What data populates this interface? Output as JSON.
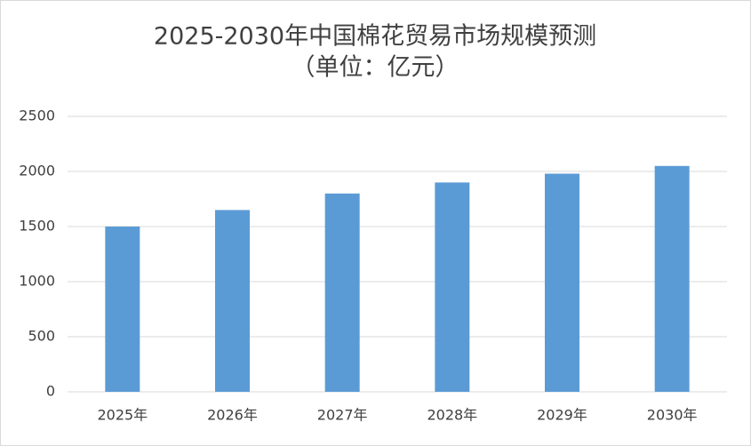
{
  "chart_data": {
    "type": "bar",
    "title": "2025-2030年中国棉花贸易市场规模预测",
    "subtitle": "（单位：亿元）",
    "categories": [
      "2025年",
      "2026年",
      "2027年",
      "2028年",
      "2029年",
      "2030年"
    ],
    "values": [
      1500,
      1650,
      1800,
      1900,
      1980,
      2050
    ],
    "color": "#5b9bd5",
    "ylim": [
      0,
      2500
    ],
    "yticks": [
      0,
      500,
      1000,
      1500,
      2000,
      2500
    ],
    "grid": true
  }
}
